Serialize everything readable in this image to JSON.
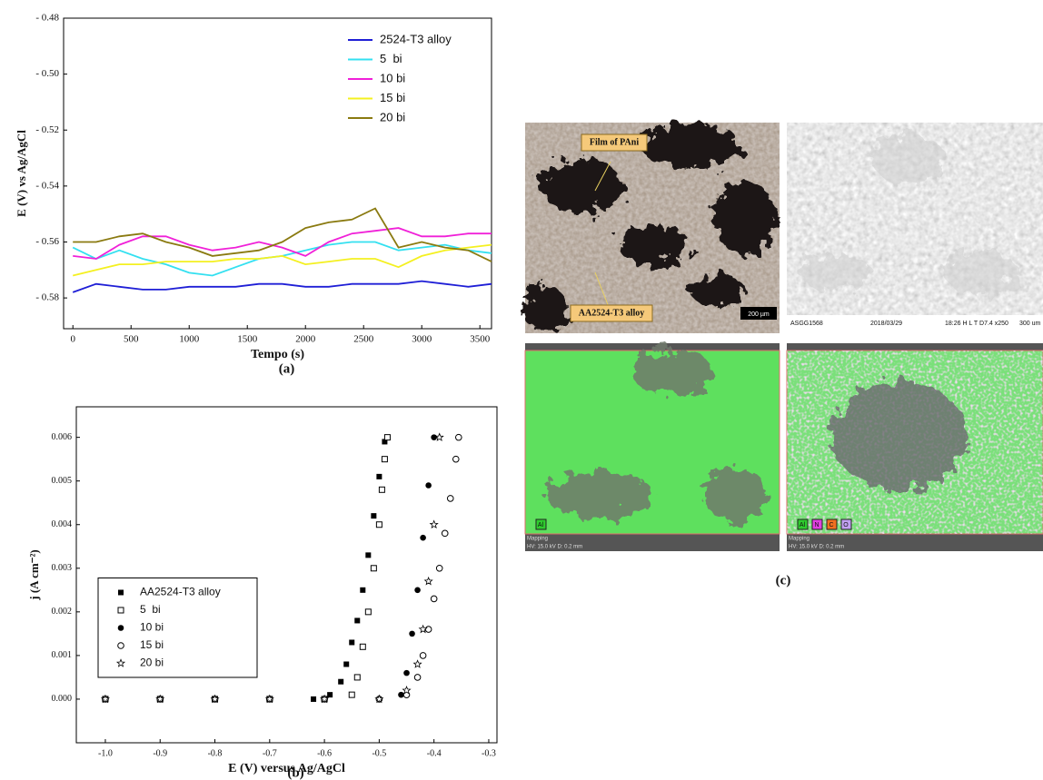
{
  "chart_data": [
    {
      "type": "line",
      "caption": "(a)",
      "xlabel": "Tempo (s)",
      "ylabel": "E (V) vs Ag/AgCl",
      "x": [
        0,
        200,
        400,
        600,
        800,
        1000,
        1200,
        1400,
        1600,
        1800,
        2000,
        2200,
        2400,
        2600,
        2800,
        3000,
        3200,
        3400,
        3600
      ],
      "series": [
        {
          "name": "2524-T3 alloy",
          "color": "#1f1fd6",
          "values": [
            -0.578,
            -0.575,
            -0.576,
            -0.577,
            -0.577,
            -0.576,
            -0.576,
            -0.576,
            -0.575,
            -0.575,
            -0.576,
            -0.576,
            -0.575,
            -0.575,
            -0.575,
            -0.574,
            -0.575,
            -0.576,
            -0.575
          ]
        },
        {
          "name": "5  bi",
          "color": "#33e0f0",
          "values": [
            -0.562,
            -0.566,
            -0.563,
            -0.566,
            -0.568,
            -0.571,
            -0.572,
            -0.569,
            -0.566,
            -0.565,
            -0.563,
            -0.561,
            -0.56,
            -0.56,
            -0.563,
            -0.562,
            -0.561,
            -0.563,
            -0.564
          ]
        },
        {
          "name": "10 bi",
          "color": "#f020d8",
          "values": [
            -0.565,
            -0.566,
            -0.561,
            -0.558,
            -0.558,
            -0.561,
            -0.563,
            -0.562,
            -0.56,
            -0.562,
            -0.565,
            -0.56,
            -0.557,
            -0.556,
            -0.555,
            -0.558,
            -0.558,
            -0.557,
            -0.557
          ]
        },
        {
          "name": "15 bi",
          "color": "#f4f020",
          "values": [
            -0.572,
            -0.57,
            -0.568,
            -0.568,
            -0.567,
            -0.567,
            -0.567,
            -0.566,
            -0.566,
            -0.565,
            -0.568,
            -0.567,
            -0.566,
            -0.566,
            -0.569,
            -0.565,
            -0.563,
            -0.562,
            -0.561
          ]
        },
        {
          "name": "20 bi",
          "color": "#8a7a10",
          "values": [
            -0.56,
            -0.56,
            -0.558,
            -0.557,
            -0.56,
            -0.562,
            -0.565,
            -0.564,
            -0.563,
            -0.56,
            -0.555,
            -0.553,
            -0.552,
            -0.548,
            -0.562,
            -0.56,
            -0.562,
            -0.563,
            -0.567
          ]
        }
      ],
      "xlim": [
        -80,
        3600
      ],
      "xticks": [
        0,
        500,
        1000,
        1500,
        2000,
        2500,
        3000,
        3500
      ],
      "ylim": [
        -0.591,
        -0.48
      ],
      "yticks": [
        {
          "value": -0.48,
          "label": "- 0.48"
        },
        {
          "value": -0.5,
          "label": "- 0.50"
        },
        {
          "value": -0.52,
          "label": "- 0.52"
        },
        {
          "value": -0.54,
          "label": "- 0.54"
        },
        {
          "value": -0.56,
          "label": "- 0.56"
        },
        {
          "value": -0.58,
          "label": "- 0.58"
        }
      ],
      "grid": false,
      "legend": "upper right"
    },
    {
      "type": "scatter",
      "caption": "(b)",
      "xlabel": "E (V) versus Ag/AgCl",
      "ylabel": "j (A cm⁻²)",
      "series": [
        {
          "name": "AA2524-T3 alloy",
          "marker": "filled-square",
          "color": "#000000",
          "x": [
            -1.0,
            -0.9,
            -0.8,
            -0.7,
            -0.62,
            -0.59,
            -0.57,
            -0.56,
            -0.55,
            -0.54,
            -0.53,
            -0.52,
            -0.51,
            -0.5,
            -0.49
          ],
          "values": [
            0,
            0,
            0,
            0,
            0,
            0.0001,
            0.0004,
            0.0008,
            0.0013,
            0.0018,
            0.0025,
            0.0033,
            0.0042,
            0.0051,
            0.0059
          ]
        },
        {
          "name": "5  bi",
          "marker": "open-square",
          "color": "#000000",
          "x": [
            -1.0,
            -0.9,
            -0.8,
            -0.7,
            -0.6,
            -0.55,
            -0.54,
            -0.53,
            -0.52,
            -0.51,
            -0.5,
            -0.495,
            -0.49,
            -0.485
          ],
          "values": [
            0,
            0,
            0,
            0,
            0,
            0.0001,
            0.0005,
            0.0012,
            0.002,
            0.003,
            0.004,
            0.0048,
            0.0055,
            0.006
          ]
        },
        {
          "name": "10 bi",
          "marker": "filled-circle",
          "color": "#000000",
          "x": [
            -1.0,
            -0.9,
            -0.8,
            -0.7,
            -0.6,
            -0.5,
            -0.46,
            -0.45,
            -0.44,
            -0.43,
            -0.42,
            -0.41,
            -0.4
          ],
          "values": [
            0,
            0,
            0,
            0,
            0,
            0,
            0.0001,
            0.0006,
            0.0015,
            0.0025,
            0.0037,
            0.0049,
            0.006
          ]
        },
        {
          "name": "15 bi",
          "marker": "open-circle",
          "color": "#000000",
          "x": [
            -1.0,
            -0.9,
            -0.8,
            -0.7,
            -0.6,
            -0.5,
            -0.45,
            -0.43,
            -0.42,
            -0.41,
            -0.4,
            -0.39,
            -0.38,
            -0.37,
            -0.36,
            -0.355
          ],
          "values": [
            0,
            0,
            0,
            0,
            0,
            0,
            0.0001,
            0.0005,
            0.001,
            0.0016,
            0.0023,
            0.003,
            0.0038,
            0.0046,
            0.0055,
            0.006
          ]
        },
        {
          "name": "20 bi",
          "marker": "star",
          "color": "#000000",
          "x": [
            -1.0,
            -0.9,
            -0.8,
            -0.7,
            -0.6,
            -0.5,
            -0.45,
            -0.43,
            -0.42,
            -0.41,
            -0.4,
            -0.39
          ],
          "values": [
            0,
            0,
            0,
            0,
            0,
            0,
            0.0002,
            0.0008,
            0.0016,
            0.0027,
            0.004,
            0.006
          ]
        }
      ],
      "xlim": [
        -1.053,
        -0.285
      ],
      "xticks": [
        {
          "value": -1,
          "label": "-1.0"
        },
        -0.9,
        -0.8,
        -0.7,
        -0.6,
        -0.5,
        -0.4,
        -0.3
      ],
      "ylim": [
        -0.001,
        0.0067
      ],
      "yticks": [
        {
          "value": 0,
          "label": "0.000"
        },
        {
          "value": 0.001,
          "label": "0.001"
        },
        {
          "value": 0.002,
          "label": "0.002"
        },
        {
          "value": 0.003,
          "label": "0.003"
        },
        {
          "value": 0.004,
          "label": "0.004"
        },
        {
          "value": 0.005,
          "label": "0.005"
        },
        {
          "value": 0.006,
          "label": "0.006"
        }
      ],
      "grid": false,
      "legend": "lower left"
    }
  ],
  "images": {
    "caption": "(c)",
    "panels": [
      {
        "labels": [
          "Film of PAni",
          "AA2524-T3 alloy"
        ],
        "scale_bar": "200 µm"
      },
      {
        "footer": [
          "ASGG1568",
          "2018/03/29",
          "18:26 H L T D7.4  x250",
          "300 um"
        ]
      },
      {
        "elements": [
          "Al"
        ],
        "footer": [
          "Mapping",
          "HV: 15.0 kV   D: 0.2 mm"
        ]
      },
      {
        "elements": [
          "Al",
          "N",
          "C",
          "O"
        ],
        "footer": [
          "Mapping",
          "HV: 15.0 kV   D: 0.2 mm"
        ]
      }
    ]
  }
}
